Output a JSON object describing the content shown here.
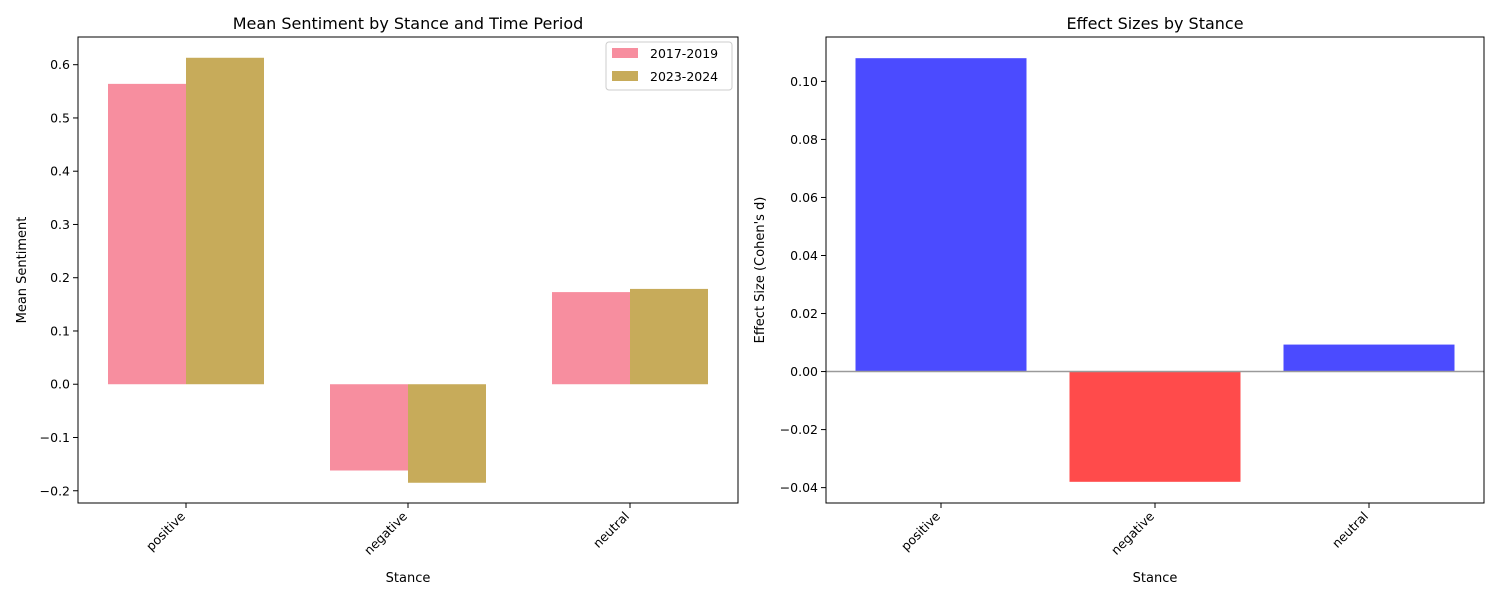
{
  "chart_data": [
    {
      "type": "bar",
      "title": "Mean Sentiment by Stance and Time Period",
      "xlabel": "Stance",
      "ylabel": "Mean Sentiment",
      "categories": [
        "positive",
        "negative",
        "neutral"
      ],
      "series": [
        {
          "name": "2017-2019",
          "values": [
            0.564,
            -0.162,
            0.173
          ],
          "color": "#f78e9f"
        },
        {
          "name": "2023-2024",
          "values": [
            0.613,
            -0.185,
            0.179
          ],
          "color": "#c7ab5a"
        }
      ],
      "ylim": [
        -0.223,
        0.652
      ],
      "yticks": [
        -0.2,
        -0.1,
        0.0,
        0.1,
        0.2,
        0.3,
        0.4,
        0.5,
        0.6
      ],
      "ytick_labels": [
        "−0.2",
        "−0.1",
        "0.0",
        "0.1",
        "0.2",
        "0.3",
        "0.4",
        "0.5",
        "0.6"
      ],
      "legend": "top-right",
      "grid": false
    },
    {
      "type": "bar",
      "title": "Effect Sizes by Stance",
      "xlabel": "Stance",
      "ylabel": "Effect Size (Cohen's d)",
      "categories": [
        "positive",
        "negative",
        "neutral"
      ],
      "values": [
        0.108,
        -0.038,
        0.0093
      ],
      "positive_color": "#4b4bff",
      "negative_color": "#ff4b4b",
      "ylim": [
        -0.0453,
        0.1153
      ],
      "yticks": [
        -0.04,
        -0.02,
        0.0,
        0.02,
        0.04,
        0.06,
        0.08,
        0.1
      ],
      "ytick_labels": [
        "−0.04",
        "−0.02",
        "0.00",
        "0.02",
        "0.04",
        "0.06",
        "0.08",
        "0.10"
      ],
      "zero_line": true,
      "grid": false
    }
  ]
}
